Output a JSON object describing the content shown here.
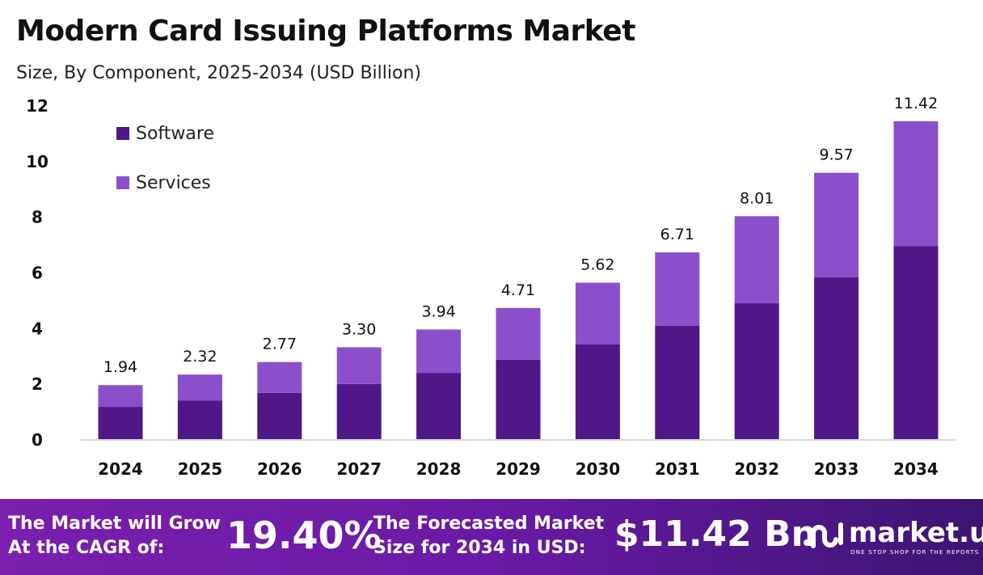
{
  "chart_data": {
    "type": "bar",
    "stacked": true,
    "title": "Modern Card Issuing Platforms Market",
    "subtitle": "Size, By Component, 2025-2034 (USD Billion)",
    "categories": [
      "2024",
      "2025",
      "2026",
      "2027",
      "2028",
      "2029",
      "2030",
      "2031",
      "2032",
      "2033",
      "2034"
    ],
    "series": [
      {
        "name": "Software",
        "color": "#4f1787",
        "values": [
          1.16,
          1.39,
          1.66,
          1.98,
          2.38,
          2.85,
          3.4,
          4.07,
          4.88,
          5.81,
          6.94
        ]
      },
      {
        "name": "Services",
        "color": "#8b4fcb",
        "values": [
          0.78,
          0.93,
          1.11,
          1.32,
          1.56,
          1.86,
          2.22,
          2.64,
          3.13,
          3.76,
          4.48
        ]
      }
    ],
    "totals": [
      "1.94",
      "2.32",
      "2.77",
      "3.30",
      "3.94",
      "4.71",
      "5.62",
      "6.71",
      "8.01",
      "9.57",
      "11.42"
    ],
    "yticks": [
      "0",
      "2",
      "4",
      "6",
      "8",
      "10",
      "12"
    ],
    "ylim": [
      0,
      12
    ],
    "grid": false,
    "legend_position": "top-left"
  },
  "footer": {
    "cagr_label_1": "The Market will Grow",
    "cagr_label_2": "At the CAGR of:",
    "cagr_value": "19.40%",
    "forecast_label_1": "The Forecasted Market",
    "forecast_label_2": "Size for 2034 in USD:",
    "forecast_value": "$11.42 Bn",
    "logo_text": "market.us",
    "logo_tagline": "ONE STOP SHOP FOR THE REPORTS"
  }
}
